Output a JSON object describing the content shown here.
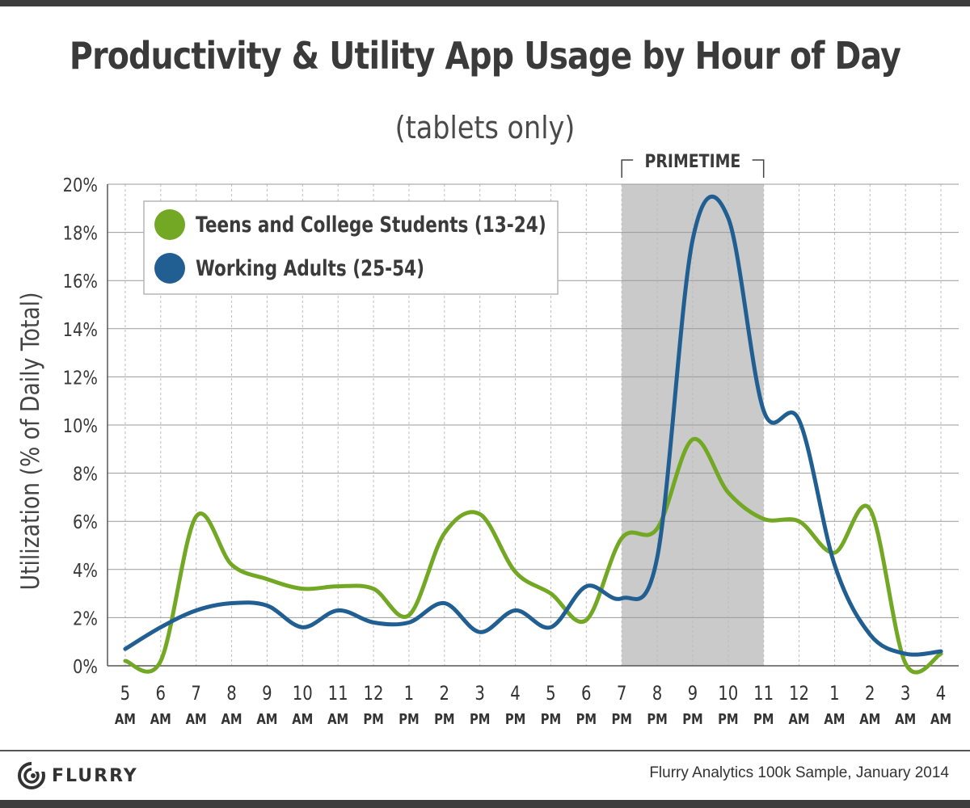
{
  "header": {
    "title": "Productivity & Utility App Usage by Hour of Day",
    "subtitle": "(tablets only)"
  },
  "footer": {
    "brand": "FLURRY",
    "source": "Flurry Analytics 100k Sample, January 2014"
  },
  "colors": {
    "teens": "#73a824",
    "adults": "#215f93",
    "primetime_band": "#cacaca",
    "grid": "#9a9a9a"
  },
  "chart_data": {
    "type": "line",
    "title": "Productivity & Utility App Usage by Hour of Day",
    "subtitle": "(tablets only)",
    "ylabel": "Utilization (% of Daily Total)",
    "xlabel": "",
    "ylim": [
      0,
      20
    ],
    "yticks": [
      "0%",
      "2%",
      "4%",
      "6%",
      "8%",
      "10%",
      "12%",
      "14%",
      "16%",
      "18%",
      "20%"
    ],
    "categories": [
      [
        "5",
        "AM"
      ],
      [
        "6",
        "AM"
      ],
      [
        "7",
        "AM"
      ],
      [
        "8",
        "AM"
      ],
      [
        "9",
        "AM"
      ],
      [
        "10",
        "AM"
      ],
      [
        "11",
        "AM"
      ],
      [
        "12",
        "PM"
      ],
      [
        "1",
        "PM"
      ],
      [
        "2",
        "PM"
      ],
      [
        "3",
        "PM"
      ],
      [
        "4",
        "PM"
      ],
      [
        "5",
        "PM"
      ],
      [
        "6",
        "PM"
      ],
      [
        "7",
        "PM"
      ],
      [
        "8",
        "PM"
      ],
      [
        "9",
        "PM"
      ],
      [
        "10",
        "PM"
      ],
      [
        "11",
        "PM"
      ],
      [
        "12",
        "AM"
      ],
      [
        "1",
        "AM"
      ],
      [
        "2",
        "AM"
      ],
      [
        "3",
        "AM"
      ],
      [
        "4",
        "AM"
      ]
    ],
    "series": [
      {
        "name": "Teens and College Students (13-24)",
        "color": "#73a824",
        "values": [
          0.2,
          0.2,
          6.2,
          4.2,
          3.6,
          3.2,
          3.3,
          3.2,
          2.1,
          5.5,
          6.3,
          3.9,
          3.0,
          1.9,
          5.3,
          5.7,
          9.4,
          7.2,
          6.1,
          6.0,
          4.7,
          6.5,
          0.1,
          0.5
        ]
      },
      {
        "name": "Working Adults (25-54)",
        "color": "#215f93",
        "values": [
          0.7,
          1.6,
          2.3,
          2.6,
          2.5,
          1.6,
          2.3,
          1.8,
          1.8,
          2.6,
          1.4,
          2.3,
          1.6,
          3.3,
          2.8,
          4.5,
          17.7,
          18.6,
          10.6,
          10.2,
          4.2,
          1.3,
          0.5,
          0.6
        ]
      }
    ],
    "annotations": [
      {
        "label": "PRIMETIME",
        "from": [
          "7",
          "PM"
        ],
        "to": [
          "11",
          "PM"
        ]
      }
    ],
    "legend_position": "top-left",
    "grid": true
  }
}
